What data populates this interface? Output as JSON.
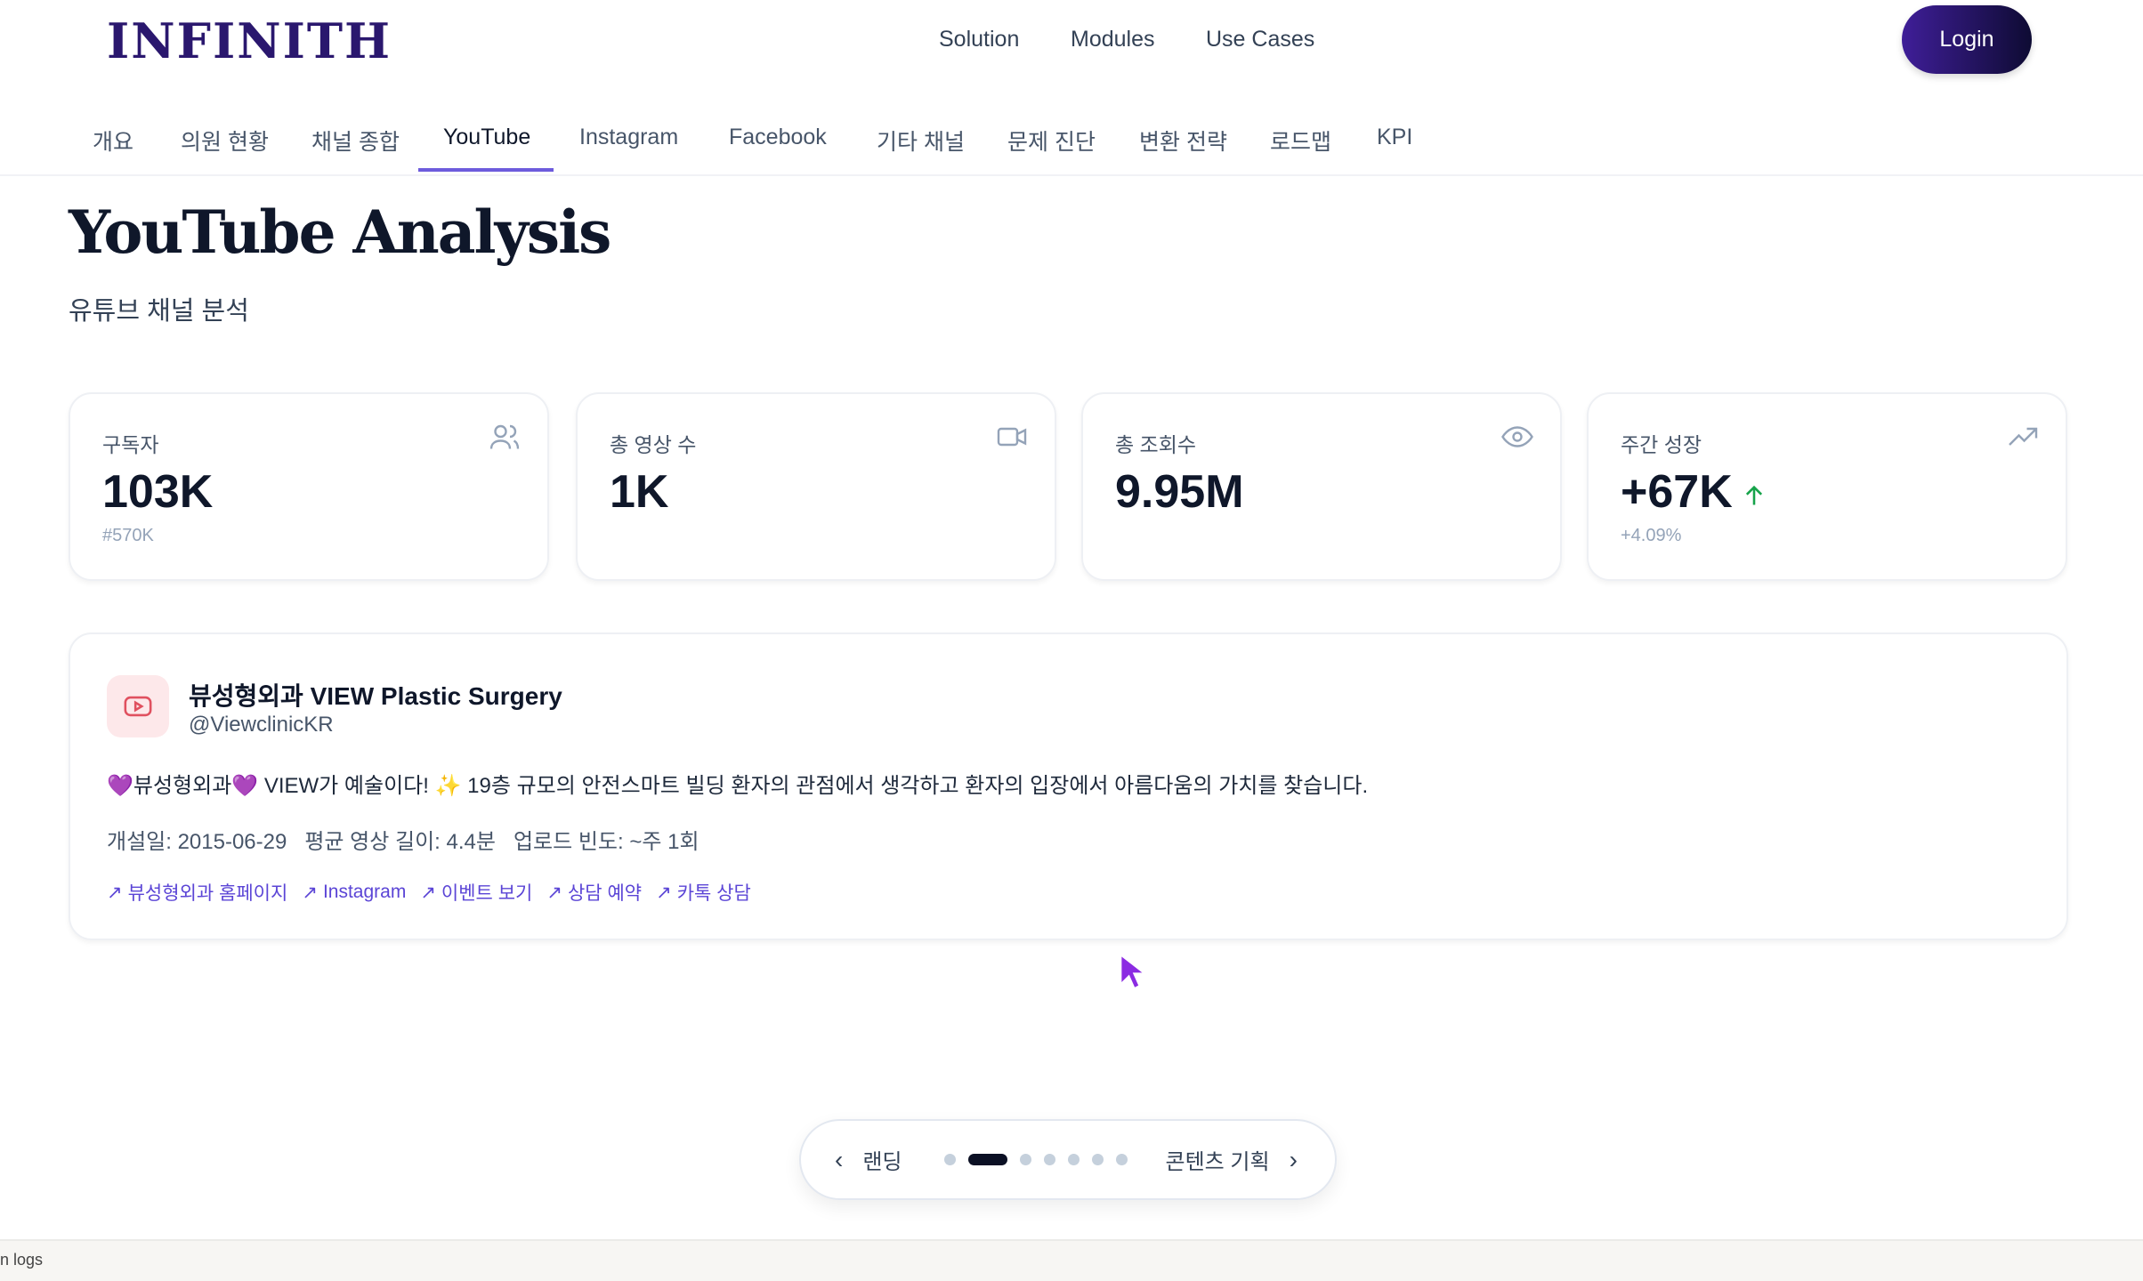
{
  "header": {
    "logo": "INFINITH",
    "nav": [
      "Solution",
      "Modules",
      "Use Cases"
    ],
    "login_label": "Login"
  },
  "tabs": [
    {
      "label": "개요"
    },
    {
      "label": "의원 현황"
    },
    {
      "label": "채널 종합"
    },
    {
      "label": "YouTube",
      "active": true
    },
    {
      "label": "Instagram"
    },
    {
      "label": "Facebook"
    },
    {
      "label": "기타 채널"
    },
    {
      "label": "문제 진단"
    },
    {
      "label": "변환 전략"
    },
    {
      "label": "로드맵"
    },
    {
      "label": "KPI"
    }
  ],
  "page": {
    "title": "YouTube Analysis",
    "subtitle": "유튜브 채널 분석"
  },
  "stats": [
    {
      "label": "구독자",
      "value": "103K",
      "sub": "#570K",
      "icon": "users-icon"
    },
    {
      "label": "총 영상 수",
      "value": "1K",
      "sub": "",
      "icon": "video-icon"
    },
    {
      "label": "총 조회수",
      "value": "9.95M",
      "sub": "",
      "icon": "eye-icon"
    },
    {
      "label": "주간 성장",
      "value": "+67K",
      "sub": "+4.09%",
      "icon": "trending-up-icon",
      "trend_color": "#16a34a"
    }
  ],
  "channel": {
    "name": "뷰성형외과 VIEW Plastic Surgery",
    "handle": "@ViewclinicKR",
    "description": "💜뷰성형외과💜 VIEW가 예술이다! ✨ 19층 규모의 안전스마트 빌딩 환자의 관점에서 생각하고 환자의 입장에서 아름다움의 가치를 찾습니다.",
    "meta": "개설일: 2015-06-29   평균 영상 길이: 4.4분   업로드 빈도: ~주 1회",
    "links": [
      "뷰성형외과 홈페이지",
      "Instagram",
      "이벤트 보기",
      "상담 예약",
      "카톡 상담"
    ]
  },
  "pager": {
    "prev": "랜딩",
    "next": "콘텐츠 기획",
    "current": 2,
    "total": 7
  },
  "footer": {
    "text": "n logs"
  },
  "colors": {
    "accent": "#6d5bdc",
    "brand": "#2a176e",
    "link": "#5b45d6"
  }
}
